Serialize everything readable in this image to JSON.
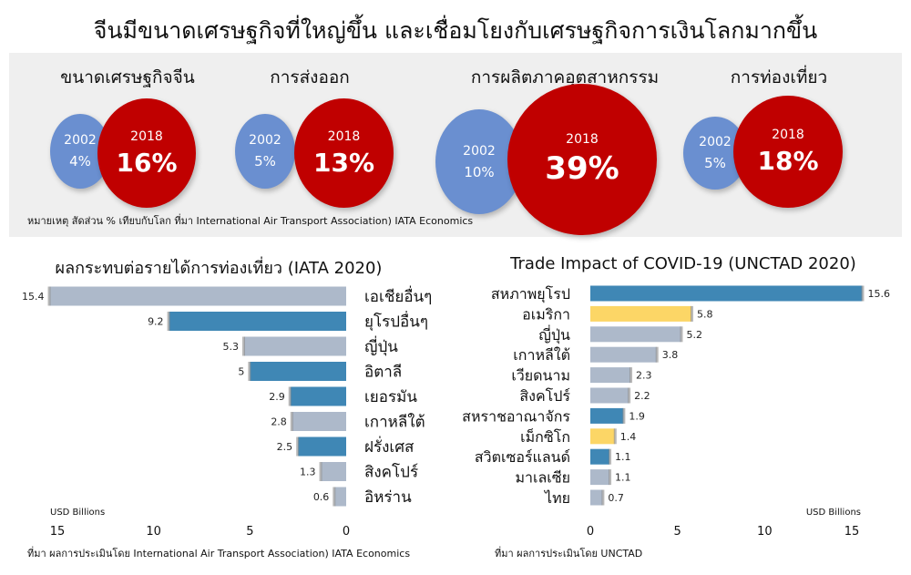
{
  "title": "จีนมีขนาดเศรษฐกิจที่ใหญ่ขึ้น และเชื่อมโยงกับเศรษฐกิจการเงินโลกมากขึ้น",
  "comparisons": [
    {
      "label": "ขนาดเศรษฐกิจจีน",
      "year_a": "2002",
      "value_a": "4%",
      "year_b": "2018",
      "value_b": "16%"
    },
    {
      "label": "การส่งออก",
      "year_a": "2002",
      "value_a": "5%",
      "year_b": "2018",
      "value_b": "13%"
    },
    {
      "label": "การผลิตภาคอุตสาหกรรม",
      "year_a": "2002",
      "value_a": "10%",
      "year_b": "2018",
      "value_b": "39%"
    },
    {
      "label": "การท่องเที่ยว",
      "year_a": "2002",
      "value_a": "5%",
      "year_b": "2018",
      "value_b": "18%"
    }
  ],
  "note": "หมายเหตุ สัดส่วน % เทียบกับโลก ที่มา International Air Transport Association) IATA Economics",
  "colors": {
    "blue": "#3f87b5",
    "gray": "#adb9ca",
    "yellow": "#fcd666",
    "bubble_2002": "#6a8fd0",
    "bubble_2018": "#c00000"
  },
  "chart_data": [
    {
      "type": "bar",
      "orientation": "horizontal",
      "direction": "right-to-left",
      "title": "ผลกระทบต่อรายได้การท่องเที่ยว (IATA 2020)",
      "unit": "USD Billions",
      "xlim": [
        0,
        15.5
      ],
      "ticks": [
        "15",
        "10",
        "5",
        "0"
      ],
      "tick_values": [
        15,
        10,
        5,
        0
      ],
      "categories": [
        "เอเชียอื่นๆ",
        "ยุโรปอื่นๆ",
        "ญี่ปุ่น",
        "อิตาลี",
        "เยอรมัน",
        "เกาหลีใต้",
        "ฝรั่งเศส",
        "สิงคโปร์",
        "อิหร่าน"
      ],
      "values": [
        15.4,
        9.2,
        5.3,
        5,
        2.9,
        2.8,
        2.5,
        1.3,
        0.6
      ],
      "value_labels": [
        "15.4",
        "9.2",
        "5.3",
        "5",
        "2.9",
        "2.8",
        "2.5",
        "1.3",
        "0.6"
      ],
      "bar_colors": [
        "gray",
        "blue",
        "gray",
        "blue",
        "blue",
        "gray",
        "blue",
        "gray",
        "gray"
      ],
      "source": "ที่มา ผลการประเมินโดย International Air Transport Association) IATA Economics"
    },
    {
      "type": "bar",
      "orientation": "horizontal",
      "title": "Trade Impact of COVID-19 (UNCTAD 2020)",
      "unit": "USD Billions",
      "xlim": [
        0,
        15.6
      ],
      "ticks": [
        "0",
        "5",
        "10",
        "15"
      ],
      "tick_values": [
        0,
        5,
        10,
        15
      ],
      "categories": [
        "สหภาพยุโรป",
        "อเมริกา",
        "ญี่ปุ่น",
        "เกาหลีใต้",
        "เวียดนาม",
        "สิงคโปร์",
        "สหราชอาณาจักร",
        "เม็กซิโก",
        "สวิตเซอร์แลนด์",
        "มาเลเซีย",
        "ไทย"
      ],
      "values": [
        15.6,
        5.8,
        5.2,
        3.8,
        2.3,
        2.2,
        1.9,
        1.4,
        1.1,
        1.1,
        0.7
      ],
      "value_labels": [
        "15.6",
        "5.8",
        "5.2",
        "3.8",
        "2.3",
        "2.2",
        "1.9",
        "1.4",
        "1.1",
        "1.1",
        "0.7"
      ],
      "bar_colors": [
        "blue",
        "yellow",
        "gray",
        "gray",
        "gray",
        "gray",
        "blue",
        "yellow",
        "blue",
        "gray",
        "gray"
      ],
      "source": "ที่มา ผลการประเมินโดย UNCTAD"
    }
  ]
}
